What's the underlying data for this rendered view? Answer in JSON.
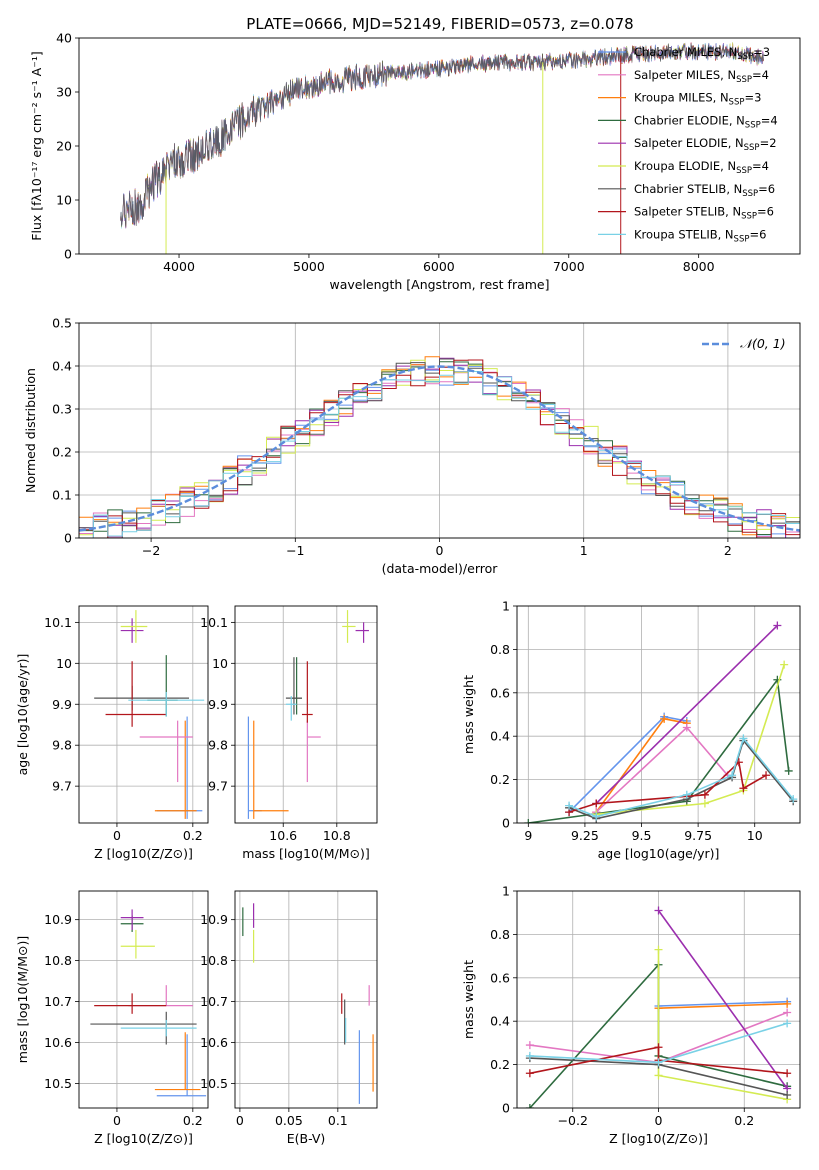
{
  "title": "PLATE=0666, MJD=52149, FIBERID=0573, z=0.078",
  "colors": {
    "Chabrier MILES": "#6495ed",
    "Salpeter MILES": "#e377c2",
    "Kroupa MILES": "#ff7f0e",
    "Chabrier ELODIE": "#2e6b3f",
    "Salpeter ELODIE": "#9b2fae",
    "Kroupa ELODIE": "#d4eb52",
    "Chabrier STELIB": "#555555",
    "Salpeter STELIB": "#b2161c",
    "Kroupa STELIB": "#79d1e6"
  },
  "chart_data": [
    {
      "id": "spectrum",
      "type": "line",
      "title": "PLATE=0666, MJD=52149, FIBERID=0573, z=0.078",
      "xlabel": "wavelength [Angstrom, rest frame]",
      "ylabel": "Flux [fλ10⁻¹⁷ erg cm⁻² s⁻¹ A⁻¹]",
      "xlim": [
        3230,
        8780
      ],
      "ylim": [
        0,
        40
      ],
      "xticks": [
        4000,
        5000,
        6000,
        7000,
        8000
      ],
      "yticks": [
        0,
        10,
        20,
        30,
        40
      ],
      "legend_position": "top-right",
      "continuum": [
        [
          3550,
          8
        ],
        [
          3700,
          9
        ],
        [
          3800,
          13
        ],
        [
          3950,
          17
        ],
        [
          4100,
          18
        ],
        [
          4300,
          21
        ],
        [
          4500,
          25
        ],
        [
          4700,
          28
        ],
        [
          4900,
          30.5
        ],
        [
          5100,
          31.5
        ],
        [
          5300,
          32.5
        ],
        [
          5600,
          33.5
        ],
        [
          5900,
          34
        ],
        [
          6200,
          35
        ],
        [
          6500,
          35.5
        ],
        [
          6800,
          35.5
        ],
        [
          7100,
          36
        ],
        [
          7500,
          37
        ],
        [
          7900,
          37.5
        ],
        [
          8300,
          37.5
        ],
        [
          8500,
          36
        ]
      ],
      "series": [
        {
          "name": "Chabrier MILES, N_SSP=3",
          "label": "Chabrier MILES, N",
          "sub": "SSP",
          "count": "=3"
        },
        {
          "name": "Salpeter MILES, N_SSP=4",
          "label": "Salpeter MILES, N",
          "sub": "SSP",
          "count": "=4"
        },
        {
          "name": "Kroupa MILES, N_SSP=3",
          "label": "Kroupa MILES, N",
          "sub": "SSP",
          "count": "=3"
        },
        {
          "name": "Chabrier ELODIE, N_SSP=4",
          "label": "Chabrier ELODIE, N",
          "sub": "SSP",
          "count": "=4"
        },
        {
          "name": "Salpeter ELODIE, N_SSP=2",
          "label": "Salpeter ELODIE, N",
          "sub": "SSP",
          "count": "=2"
        },
        {
          "name": "Kroupa ELODIE, N_SSP=4",
          "label": "Kroupa ELODIE, N",
          "sub": "SSP",
          "count": "=4"
        },
        {
          "name": "Chabrier STELIB, N_SSP=6",
          "label": "Chabrier STELIB, N",
          "sub": "SSP",
          "count": "=6"
        },
        {
          "name": "Salpeter STELIB, N_SSP=6",
          "label": "Salpeter STELIB, N",
          "sub": "SSP",
          "count": "=6"
        },
        {
          "name": "Kroupa STELIB, N_SSP=6",
          "label": "Kroupa STELIB, N",
          "sub": "SSP",
          "count": "=6"
        }
      ],
      "model_cutoffs": [
        {
          "model": "Kroupa ELODIE",
          "x": 3900
        },
        {
          "model": "Kroupa ELODIE",
          "x": 6800
        },
        {
          "model": "Salpeter STELIB",
          "x": 7400
        }
      ]
    },
    {
      "id": "residuals",
      "type": "histogram",
      "xlabel": "(data-model)/error",
      "ylabel": "Normed distribution",
      "xlim": [
        -2.5,
        2.5
      ],
      "ylim": [
        0,
        0.5
      ],
      "xticks": [
        -2,
        -1,
        0,
        1,
        2
      ],
      "yticks": [
        0.0,
        0.1,
        0.2,
        0.3,
        0.4,
        0.5
      ],
      "grid": true,
      "bin_width": 0.1,
      "legend": "𝒩(0, 1)",
      "legend_position": "top-right",
      "reference_curve": "normal pdf, mean 0, sd 1"
    },
    {
      "id": "age-vs-Z",
      "type": "errorbar",
      "xlabel": "Z [log10(Z/Z⊙)]",
      "ylabel": "age [log10(age/yr)]",
      "xlim": [
        -0.1,
        0.24
      ],
      "ylim": [
        9.61,
        10.14
      ],
      "xticks": [
        0.0,
        0.2
      ],
      "yticks": [
        9.7,
        9.8,
        9.9,
        10.0,
        10.1
      ],
      "grid": true,
      "points": [
        {
          "model": "Chabrier MILES",
          "x": 0.185,
          "y": 9.64,
          "xerr": [
            0.08,
            0.04
          ],
          "yerr": [
            0.02,
            0.23
          ]
        },
        {
          "model": "Kroupa MILES",
          "x": 0.18,
          "y": 9.64,
          "xerr": [
            0.08,
            0.03
          ],
          "yerr": [
            0.02,
            0.22
          ]
        },
        {
          "model": "Salpeter MILES",
          "x": 0.16,
          "y": 9.82,
          "xerr": [
            0.1,
            0.04
          ],
          "yerr": [
            0.11,
            0.04
          ]
        },
        {
          "model": "Chabrier ELODIE",
          "x": 0.13,
          "y": 9.91,
          "xerr": [
            0.05,
            0.03
          ],
          "yerr": [
            0.04,
            0.11
          ]
        },
        {
          "model": "Salpeter ELODIE",
          "x": 0.04,
          "y": 10.08,
          "xerr": [
            0.03,
            0.03
          ],
          "yerr": [
            0.03,
            0.03
          ]
        },
        {
          "model": "Kroupa ELODIE",
          "x": 0.05,
          "y": 10.09,
          "xerr": [
            0.04,
            0.03
          ],
          "yerr": [
            0.04,
            0.04
          ]
        },
        {
          "model": "Chabrier STELIB",
          "x": 0.04,
          "y": 9.915,
          "xerr": [
            0.1,
            0.15
          ],
          "yerr": [
            0.03,
            0.03
          ]
        },
        {
          "model": "Salpeter STELIB",
          "x": 0.04,
          "y": 9.875,
          "xerr": [
            0.07,
            0.09
          ],
          "yerr": [
            0.03,
            0.13
          ]
        },
        {
          "model": "Kroupa STELIB",
          "x": 0.13,
          "y": 9.91,
          "xerr": [
            0.1,
            0.1
          ],
          "yerr": [
            0.04,
            0.02
          ]
        }
      ]
    },
    {
      "id": "age-vs-mass",
      "type": "errorbar",
      "xlabel": "mass [log10(M/M⊙)]",
      "ylabel": "",
      "xlim": [
        10.42,
        10.95
      ],
      "ylim": [
        9.61,
        10.14
      ],
      "xticks": [
        10.6,
        10.8
      ],
      "yticks": [
        9.7,
        9.8,
        9.9,
        10.0,
        10.1
      ],
      "grid": true,
      "points": [
        {
          "model": "Chabrier MILES",
          "x": 10.47,
          "y": 9.64,
          "xerr": [
            0.0,
            0.05
          ],
          "yerr": [
            0.02,
            0.23
          ]
        },
        {
          "model": "Kroupa MILES",
          "x": 10.49,
          "y": 9.64,
          "xerr": [
            0.0,
            0.13
          ],
          "yerr": [
            0.02,
            0.22
          ]
        },
        {
          "model": "Salpeter MILES",
          "x": 10.69,
          "y": 9.82,
          "xerr": [
            0.0,
            0.05
          ],
          "yerr": [
            0.11,
            0.04
          ]
        },
        {
          "model": "Chabrier ELODIE",
          "x": 10.65,
          "y": 9.915,
          "xerr": [
            0.02,
            0.02
          ],
          "yerr": [
            0.04,
            0.1
          ]
        },
        {
          "model": "Salpeter ELODIE",
          "x": 10.9,
          "y": 10.08,
          "xerr": [
            0.03,
            0.02
          ],
          "yerr": [
            0.03,
            0.02
          ]
        },
        {
          "model": "Kroupa ELODIE",
          "x": 10.84,
          "y": 10.09,
          "xerr": [
            0.02,
            0.03
          ],
          "yerr": [
            0.04,
            0.04
          ]
        },
        {
          "model": "Chabrier STELIB",
          "x": 10.64,
          "y": 9.915,
          "xerr": [
            0.03,
            0.03
          ],
          "yerr": [
            0.04,
            0.1
          ]
        },
        {
          "model": "Salpeter STELIB",
          "x": 10.69,
          "y": 9.875,
          "xerr": [
            0.02,
            0.02
          ],
          "yerr": [
            0.02,
            0.13
          ]
        },
        {
          "model": "Kroupa STELIB",
          "x": 10.63,
          "y": 9.9,
          "xerr": [
            0.02,
            0.02
          ],
          "yerr": [
            0.04,
            0.02
          ]
        }
      ]
    },
    {
      "id": "weight-vs-age",
      "type": "line",
      "xlabel": "age [log10(age/yr)]",
      "ylabel": "mass weight",
      "xlim": [
        8.95,
        10.2
      ],
      "ylim": [
        0,
        1.0
      ],
      "xticks": [
        9.0,
        9.25,
        9.5,
        9.75,
        10.0
      ],
      "yticks": [
        0.0,
        0.2,
        0.4,
        0.6,
        0.8,
        1.0
      ],
      "grid": true,
      "series": [
        {
          "model": "Chabrier MILES",
          "x": [
            9.18,
            9.6,
            9.7
          ],
          "y": [
            0.05,
            0.49,
            0.47
          ]
        },
        {
          "model": "Kroupa MILES",
          "x": [
            9.3,
            9.6,
            9.7
          ],
          "y": [
            0.05,
            0.48,
            0.46
          ]
        },
        {
          "model": "Salpeter MILES",
          "x": [
            9.3,
            9.7,
            9.88
          ],
          "y": [
            0.05,
            0.44,
            0.22
          ]
        },
        {
          "model": "Chabrier ELODIE",
          "x": [
            9.0,
            9.7,
            10.1,
            10.15
          ],
          "y": [
            0.0,
            0.1,
            0.66,
            0.24
          ]
        },
        {
          "model": "Salpeter ELODIE",
          "x": [
            9.3,
            10.1
          ],
          "y": [
            0.09,
            0.91
          ]
        },
        {
          "model": "Kroupa ELODIE",
          "x": [
            9.3,
            9.78,
            9.95,
            10.13
          ],
          "y": [
            0.04,
            0.09,
            0.15,
            0.73
          ]
        },
        {
          "model": "Chabrier STELIB",
          "x": [
            9.18,
            9.3,
            9.7,
            9.9,
            9.95,
            10.17
          ],
          "y": [
            0.07,
            0.02,
            0.11,
            0.21,
            0.38,
            0.1
          ]
        },
        {
          "model": "Salpeter STELIB",
          "x": [
            9.18,
            9.3,
            9.78,
            9.93,
            9.95,
            10.05
          ],
          "y": [
            0.05,
            0.09,
            0.13,
            0.28,
            0.16,
            0.22
          ]
        },
        {
          "model": "Kroupa STELIB",
          "x": [
            9.18,
            9.3,
            9.7,
            9.9,
            9.95,
            10.17
          ],
          "y": [
            0.08,
            0.03,
            0.13,
            0.22,
            0.39,
            0.11
          ]
        }
      ]
    },
    {
      "id": "mass-vs-Z",
      "type": "errorbar",
      "xlabel": "Z [log10(Z/Z⊙)]",
      "ylabel": "mass [log10(M/M⊙)]",
      "xlim": [
        -0.1,
        0.24
      ],
      "ylim": [
        10.44,
        10.97
      ],
      "xticks": [
        0.0,
        0.2
      ],
      "yticks": [
        10.5,
        10.6,
        10.7,
        10.8,
        10.9
      ],
      "grid": true,
      "points": [
        {
          "model": "Chabrier MILES",
          "x": 0.185,
          "y": 10.47,
          "xerr": [
            0.08,
            0.05
          ],
          "yerr": [
            0.0,
            0.15
          ]
        },
        {
          "model": "Kroupa MILES",
          "x": 0.18,
          "y": 10.485,
          "xerr": [
            0.08,
            0.04
          ],
          "yerr": [
            0.0,
            0.14
          ]
        },
        {
          "model": "Salpeter MILES",
          "x": 0.13,
          "y": 10.69,
          "xerr": [
            0.1,
            0.07
          ],
          "yerr": [
            0.0,
            0.05
          ]
        },
        {
          "model": "Chabrier ELODIE",
          "x": 0.04,
          "y": 10.89,
          "xerr": [
            0.03,
            0.03
          ],
          "yerr": [
            0.02,
            0.02
          ]
        },
        {
          "model": "Salpeter ELODIE",
          "x": 0.04,
          "y": 10.905,
          "xerr": [
            0.03,
            0.03
          ],
          "yerr": [
            0.03,
            0.02
          ]
        },
        {
          "model": "Kroupa ELODIE",
          "x": 0.05,
          "y": 10.835,
          "xerr": [
            0.04,
            0.05
          ],
          "yerr": [
            0.03,
            0.04
          ]
        },
        {
          "model": "Chabrier STELIB",
          "x": 0.13,
          "y": 10.645,
          "xerr": [
            0.2,
            0.08
          ],
          "yerr": [
            0.05,
            0.03
          ]
        },
        {
          "model": "Salpeter STELIB",
          "x": 0.04,
          "y": 10.69,
          "xerr": [
            0.1,
            0.09
          ],
          "yerr": [
            0.02,
            0.03
          ]
        },
        {
          "model": "Kroupa STELIB",
          "x": 0.13,
          "y": 10.635,
          "xerr": [
            0.12,
            0.08
          ],
          "yerr": [
            0.02,
            0.02
          ]
        }
      ]
    },
    {
      "id": "mass-vs-EBV",
      "type": "errorbar",
      "xlabel": "E(B-V)",
      "ylabel": "",
      "xlim": [
        -0.005,
        0.14
      ],
      "ylim": [
        10.44,
        10.97
      ],
      "xticks": [
        0.0,
        0.05,
        0.1
      ],
      "yticks": [
        10.5,
        10.6,
        10.7,
        10.8,
        10.9
      ],
      "grid": true,
      "points": [
        {
          "model": "Chabrier MILES",
          "x": 0.122,
          "y": 10.47,
          "xerr": [
            0.0,
            0.0
          ],
          "yerr": [
            0.02,
            0.16
          ]
        },
        {
          "model": "Kroupa MILES",
          "x": 0.136,
          "y": 10.48,
          "xerr": [
            0.0,
            0.0
          ],
          "yerr": [
            0.0,
            0.14
          ]
        },
        {
          "model": "Salpeter MILES",
          "x": 0.132,
          "y": 10.69,
          "xerr": [
            0.0,
            0.0
          ],
          "yerr": [
            0.0,
            0.05
          ]
        },
        {
          "model": "Chabrier ELODIE",
          "x": 0.003,
          "y": 10.89,
          "xerr": [
            0.0,
            0.0
          ],
          "yerr": [
            0.03,
            0.04
          ]
        },
        {
          "model": "Salpeter ELODIE",
          "x": 0.014,
          "y": 10.9,
          "xerr": [
            0.0,
            0.0
          ],
          "yerr": [
            0.02,
            0.04
          ]
        },
        {
          "model": "Kroupa ELODIE",
          "x": 0.014,
          "y": 10.835,
          "xerr": [
            0.0,
            0.0
          ],
          "yerr": [
            0.04,
            0.04
          ]
        },
        {
          "model": "Chabrier STELIB",
          "x": 0.107,
          "y": 10.645,
          "xerr": [
            0.0,
            0.0
          ],
          "yerr": [
            0.05,
            0.06
          ]
        },
        {
          "model": "Salpeter STELIB",
          "x": 0.104,
          "y": 10.69,
          "xerr": [
            0.0,
            0.0
          ],
          "yerr": [
            0.02,
            0.03
          ]
        },
        {
          "model": "Kroupa STELIB",
          "x": 0.108,
          "y": 10.63,
          "xerr": [
            0.0,
            0.0
          ],
          "yerr": [
            0.03,
            0.03
          ]
        }
      ]
    },
    {
      "id": "weight-vs-Z",
      "type": "line",
      "xlabel": "Z [log10(Z/Z⊙)]",
      "ylabel": "mass weight",
      "xlim": [
        -0.33,
        0.33
      ],
      "ylim": [
        0,
        1.0
      ],
      "xticks": [
        -0.2,
        0.0,
        0.2
      ],
      "yticks": [
        0.0,
        0.2,
        0.4,
        0.6,
        0.8,
        1.0
      ],
      "grid": true,
      "series": [
        {
          "model": "Chabrier MILES",
          "x": [
            0.0,
            0.3
          ],
          "y": [
            0.47,
            0.49
          ]
        },
        {
          "model": "Kroupa MILES",
          "x": [
            0.0,
            0.3
          ],
          "y": [
            0.46,
            0.48
          ]
        },
        {
          "model": "Salpeter MILES",
          "x": [
            -0.3,
            0.0,
            0.3
          ],
          "y": [
            0.29,
            0.21,
            0.44
          ]
        },
        {
          "model": "Chabrier ELODIE",
          "x": [
            -0.3,
            0.0,
            0.0,
            0.3
          ],
          "y": [
            0.0,
            0.66,
            0.24,
            0.1
          ]
        },
        {
          "model": "Salpeter ELODIE",
          "x": [
            0.0,
            0.3
          ],
          "y": [
            0.91,
            0.09
          ]
        },
        {
          "model": "Kroupa ELODIE",
          "x": [
            0.0,
            0.0,
            0.3
          ],
          "y": [
            0.73,
            0.15,
            0.04
          ]
        },
        {
          "model": "Chabrier STELIB",
          "x": [
            -0.3,
            0.0,
            0.3
          ],
          "y": [
            0.23,
            0.2,
            0.06
          ]
        },
        {
          "model": "Salpeter STELIB",
          "x": [
            -0.3,
            0.0,
            0.0,
            0.3
          ],
          "y": [
            0.16,
            0.28,
            0.22,
            0.16
          ]
        },
        {
          "model": "Kroupa STELIB",
          "x": [
            -0.3,
            0.0,
            0.3
          ],
          "y": [
            0.24,
            0.21,
            0.39
          ]
        }
      ]
    }
  ]
}
